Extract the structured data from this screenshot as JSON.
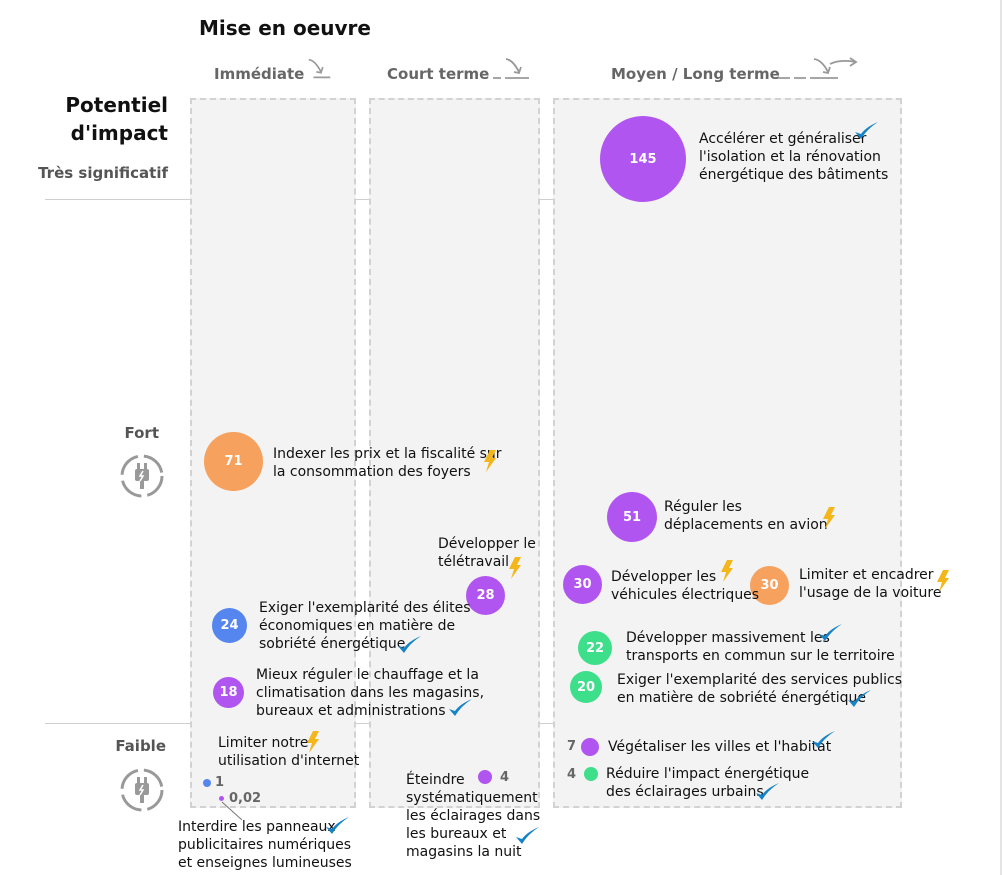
{
  "header": {
    "title": "Mise en oeuvre",
    "columns": [
      "Immédiate",
      "Court terme",
      "Moyen / Long terme"
    ]
  },
  "axis": {
    "title_line1": "Potentiel",
    "title_line2": "d'impact",
    "levels": [
      "Très significatif",
      "Fort",
      "Faible"
    ]
  },
  "colors": {
    "purple": "#b155f0",
    "orange": "#f7a15e",
    "blue": "#5585ee",
    "green": "#3ddf8b",
    "bolt": "#f4b71b",
    "check": "#1583c7"
  },
  "measures": [
    {
      "value": "145",
      "label_lines": [
        "Accélérer et généraliser",
        "l'isolation et la rénovation",
        "énergétique des bâtiments"
      ],
      "type": "check"
    },
    {
      "value": "71",
      "label_lines": [
        "Indexer les prix et la fiscalité sur",
        "la consommation des foyers"
      ],
      "type": "bolt"
    },
    {
      "value": "51",
      "label_lines": [
        "Réguler les",
        "déplacements en avion"
      ],
      "type": "bolt"
    },
    {
      "value": "28",
      "label_lines": [
        "Développer le",
        "télétravail"
      ],
      "type": "bolt"
    },
    {
      "value": "30",
      "label_lines": [
        "Développer les",
        "véhicules électriques"
      ],
      "type": "bolt"
    },
    {
      "value": "30",
      "label_lines": [
        "Limiter et encadrer",
        "l'usage de la voiture"
      ],
      "type": "bolt"
    },
    {
      "value": "24",
      "label_lines": [
        "Exiger l'exemplarité des élites",
        "économiques en matière de",
        "sobriété énergétique"
      ],
      "type": "check"
    },
    {
      "value": "22",
      "label_lines": [
        "Développer massivement les",
        "transports en commun sur le territoire"
      ],
      "type": "check"
    },
    {
      "value": "20",
      "label_lines": [
        "Exiger l'exemplarité des services publics",
        "en matière de sobriété énergétique"
      ],
      "type": "check"
    },
    {
      "value": "18",
      "label_lines": [
        "Mieux réguler le chauffage et la",
        "climatisation dans les magasins,",
        "bureaux et administrations"
      ],
      "type": "check"
    },
    {
      "value": "7",
      "label_lines": [
        "Végétaliser les villes et l'habitat"
      ],
      "type": "check"
    },
    {
      "value": "4",
      "label_lines": [
        "Réduire l'impact énergétique",
        "des éclairages urbains"
      ],
      "type": "check"
    },
    {
      "value": "4",
      "label_lines": [
        "Éteindre",
        "systématiquement",
        "les éclairages dans",
        "les bureaux et",
        "magasins la nuit"
      ],
      "type": "check"
    },
    {
      "value": "1",
      "label_lines": [
        "Limiter notre",
        "utilisation d'internet"
      ],
      "type": "bolt"
    },
    {
      "value": "0,02",
      "label_lines": [
        "Interdire les panneaux",
        "publicitaires numériques",
        "et enseignes lumineuses"
      ],
      "type": "check"
    }
  ]
}
